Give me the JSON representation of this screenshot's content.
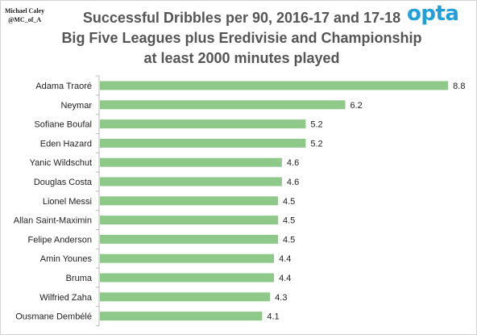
{
  "author": {
    "name": "Michael Caley",
    "handle": "@MC_of_A"
  },
  "logo": "opta",
  "colors": {
    "bar": "#8fc98a",
    "axis": "#b8b8b8",
    "title": "#555555",
    "logo": "#1fa0dc"
  },
  "chart_data": {
    "type": "bar",
    "orientation": "horizontal",
    "title": "Successful Dribbles per 90, 2016-17 and 17-18",
    "subtitle": [
      "Big Five Leagues plus Eredivisie and Championship",
      "at least 2000 minutes played"
    ],
    "xlabel": "",
    "ylabel": "",
    "xlim": [
      0,
      9
    ],
    "grid": false,
    "categories": [
      "Adama Traoré",
      "Neymar",
      "Sofiane Boufal",
      "Eden Hazard",
      "Yanic Wildschut",
      "Douglas Costa",
      "Lionel Messi",
      "Allan Saint-Maximin",
      "Felipe Anderson",
      "Amin Younes",
      "Bruma",
      "Wilfried Zaha",
      "Ousmane Dembélé"
    ],
    "values": [
      8.8,
      6.2,
      5.2,
      5.2,
      4.6,
      4.6,
      4.5,
      4.5,
      4.5,
      4.4,
      4.4,
      4.3,
      4.1
    ],
    "value_labels": [
      "8.8",
      "6.2",
      "5.2",
      "5.2",
      "4.6",
      "4.6",
      "4.5",
      "4.5",
      "4.5",
      "4.4",
      "4.4",
      "4.3",
      "4.1"
    ]
  }
}
